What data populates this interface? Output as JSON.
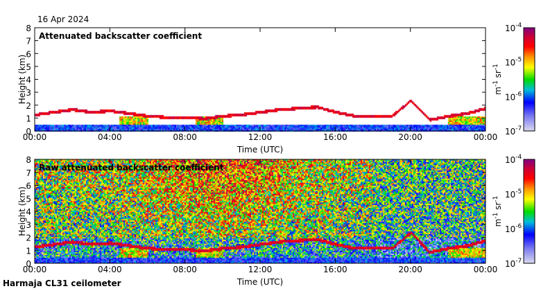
{
  "date": "16 Apr 2024",
  "footer": "Harmaja CL31 ceilometer",
  "chart_data": [
    {
      "type": "heatmap",
      "title": "Attenuated backscatter coefficient",
      "xlabel": "Time (UTC)",
      "ylabel": "Height (km)",
      "xlim_hours": [
        0,
        24
      ],
      "ylim": [
        0,
        8
      ],
      "xticks": [
        "00:00",
        "04:00",
        "08:00",
        "12:00",
        "16:00",
        "20:00",
        "00:00"
      ],
      "yticks": [
        "0",
        "1",
        "2",
        "3",
        "4",
        "5",
        "6",
        "7",
        "8"
      ],
      "colorbar": {
        "label": "m-1 sr-1",
        "scale": "log",
        "range": [
          1e-07,
          0.0001
        ],
        "ticks": [
          "-7",
          "-6",
          "-5",
          "-4"
        ]
      },
      "cloud_layer_km": [
        [
          1.5,
          1.6
        ],
        [
          2,
          1.7
        ],
        [
          3,
          1.5
        ],
        [
          4,
          1.6
        ],
        [
          5,
          1.4
        ],
        [
          6,
          1.2
        ],
        [
          7,
          1.1
        ],
        [
          8,
          1.1
        ],
        [
          9,
          1.0
        ],
        [
          10,
          1.2
        ],
        [
          11,
          1.3
        ],
        [
          12,
          1.5
        ],
        [
          13,
          1.7
        ],
        [
          14,
          1.8
        ],
        [
          15,
          1.9
        ],
        [
          16,
          1.5
        ],
        [
          17,
          1.2
        ],
        [
          18,
          1.2
        ],
        [
          19,
          1.2
        ],
        [
          20,
          2.4
        ],
        [
          21,
          0.9
        ],
        [
          22,
          1.2
        ],
        [
          23,
          1.4
        ],
        [
          24,
          1.8
        ]
      ],
      "noise_masked": true
    },
    {
      "type": "heatmap",
      "title": "Raw attenuated backscatter coefficient",
      "xlabel": "Time (UTC)",
      "ylabel": "Height (km)",
      "xlim_hours": [
        0,
        24
      ],
      "ylim": [
        0,
        8
      ],
      "xticks": [
        "00:00",
        "04:00",
        "08:00",
        "12:00",
        "16:00",
        "20:00",
        "00:00"
      ],
      "yticks": [
        "0",
        "1",
        "2",
        "3",
        "4",
        "5",
        "6",
        "7",
        "8"
      ],
      "colorbar": {
        "label": "m-1 sr-1",
        "scale": "log",
        "range": [
          1e-07,
          0.0001
        ],
        "ticks": [
          "-7",
          "-6",
          "-5",
          "-4"
        ]
      },
      "noise_masked": false
    }
  ]
}
